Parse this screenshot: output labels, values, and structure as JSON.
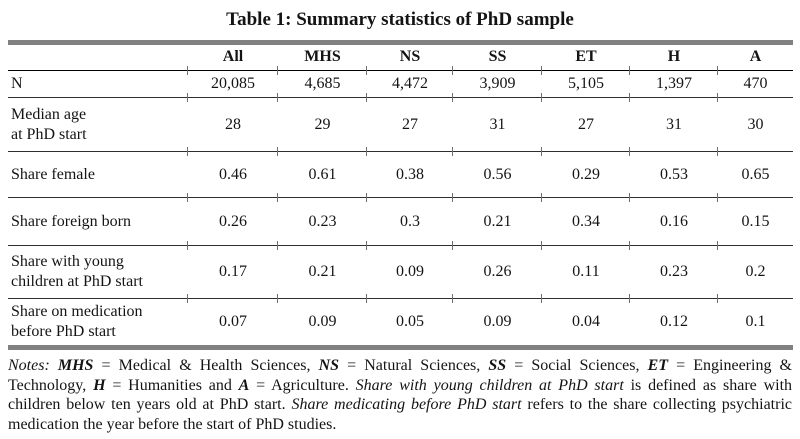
{
  "title": "Table 1: Summary statistics of PhD sample",
  "table": {
    "header": [
      "",
      "All",
      "MHS",
      "NS",
      "SS",
      "ET",
      "H",
      "A"
    ],
    "rows": [
      {
        "label": "N",
        "values": [
          "20,085",
          "4,685",
          "4,472",
          "3,909",
          "5,105",
          "1,397",
          "470"
        ]
      },
      {
        "label": "Median age\nat PhD start",
        "values": [
          "28",
          "29",
          "27",
          "31",
          "27",
          "31",
          "30"
        ]
      },
      {
        "label": "Share female",
        "values": [
          "0.46",
          "0.61",
          "0.38",
          "0.56",
          "0.29",
          "0.53",
          "0.65"
        ]
      },
      {
        "label": "Share foreign born",
        "values": [
          "0.26",
          "0.23",
          "0.3",
          "0.21",
          "0.34",
          "0.16",
          "0.15"
        ]
      },
      {
        "label": "Share with young\nchildren at PhD start",
        "values": [
          "0.17",
          "0.21",
          "0.09",
          "0.26",
          "0.11",
          "0.23",
          "0.2"
        ]
      },
      {
        "label": "Share on medication\nbefore PhD start",
        "values": [
          "0.07",
          "0.09",
          "0.05",
          "0.09",
          "0.04",
          "0.12",
          "0.1"
        ]
      }
    ]
  },
  "notes_segments": [
    {
      "style": "italic",
      "text": "Notes: "
    },
    {
      "style": "bolditalic",
      "text": "MHS"
    },
    {
      "style": "normal",
      "text": " = Medical & Health Sciences, "
    },
    {
      "style": "bolditalic",
      "text": "NS"
    },
    {
      "style": "normal",
      "text": " = Natural Sciences, "
    },
    {
      "style": "bolditalic",
      "text": "SS"
    },
    {
      "style": "normal",
      "text": " = Social Sciences, "
    },
    {
      "style": "bolditalic",
      "text": "ET"
    },
    {
      "style": "normal",
      "text": " = Engineering & Technology, "
    },
    {
      "style": "bolditalic",
      "text": "H"
    },
    {
      "style": "normal",
      "text": " = Humanities and "
    },
    {
      "style": "bolditalic",
      "text": "A"
    },
    {
      "style": "normal",
      "text": " = Agriculture. "
    },
    {
      "style": "italic",
      "text": "Share with young children at PhD start"
    },
    {
      "style": "normal",
      "text": " is defined as share with children below ten years old at PhD start. "
    },
    {
      "style": "italic",
      "text": "Share medicating before PhD start"
    },
    {
      "style": "normal",
      "text": " refers to the share collecting psychiatric medication the year before the start of PhD studies."
    }
  ],
  "colors": {
    "rule_gray": "#818181",
    "line_dark": "#2e2e2e",
    "header_line": "#000000",
    "tick": "#6e6e6e",
    "text": "#141414"
  }
}
